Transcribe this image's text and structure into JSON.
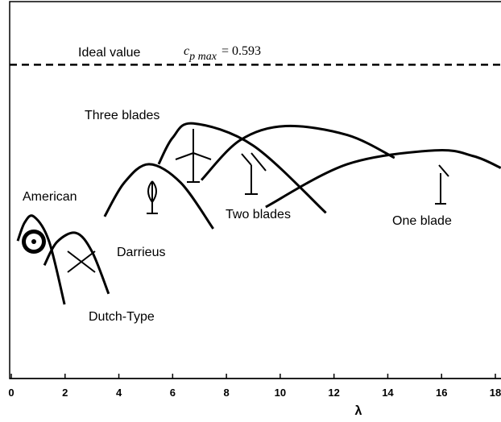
{
  "chart_data": {
    "type": "line",
    "xlabel": "λ",
    "xlim": [
      0,
      18
    ],
    "xticks": [
      0,
      2,
      4,
      6,
      8,
      10,
      12,
      14,
      16,
      18
    ],
    "ylim": [
      0,
      0.7
    ],
    "ideal": {
      "text": "Ideal value",
      "symbol": "c",
      "subscript": "p max",
      "relation": "=",
      "value": 0.593
    },
    "series": [
      {
        "name": "American",
        "color": "#000000",
        "x": [
          0.24,
          0.5,
          0.84,
          1.4,
          1.98
        ],
        "values": [
          0.26,
          0.295,
          0.306,
          0.26,
          0.14
        ]
      },
      {
        "name": "Dutch-Type",
        "color": "#000000",
        "x": [
          1.23,
          1.7,
          2.41,
          3.0,
          3.62
        ],
        "values": [
          0.214,
          0.258,
          0.275,
          0.24,
          0.16
        ]
      },
      {
        "name": "Darrieus",
        "color": "#000000",
        "x": [
          3.47,
          4.2,
          5.12,
          6.3,
          7.51
        ],
        "values": [
          0.306,
          0.37,
          0.405,
          0.37,
          0.283
        ]
      },
      {
        "name": "Three blades",
        "color": "#000000",
        "x": [
          5.48,
          6.0,
          6.77,
          9.0,
          11.7
        ],
        "values": [
          0.405,
          0.455,
          0.482,
          0.44,
          0.313
        ]
      },
      {
        "name": "Two blades",
        "color": "#000000",
        "x": [
          7.07,
          8.5,
          10.2,
          12.5,
          14.25
        ],
        "values": [
          0.375,
          0.45,
          0.477,
          0.46,
          0.417
        ]
      },
      {
        "name": "One blade",
        "color": "#000000",
        "x": [
          9.46,
          12.5,
          15.75,
          17.2,
          18.2
        ],
        "values": [
          0.324,
          0.405,
          0.431,
          0.42,
          0.398
        ]
      }
    ]
  }
}
